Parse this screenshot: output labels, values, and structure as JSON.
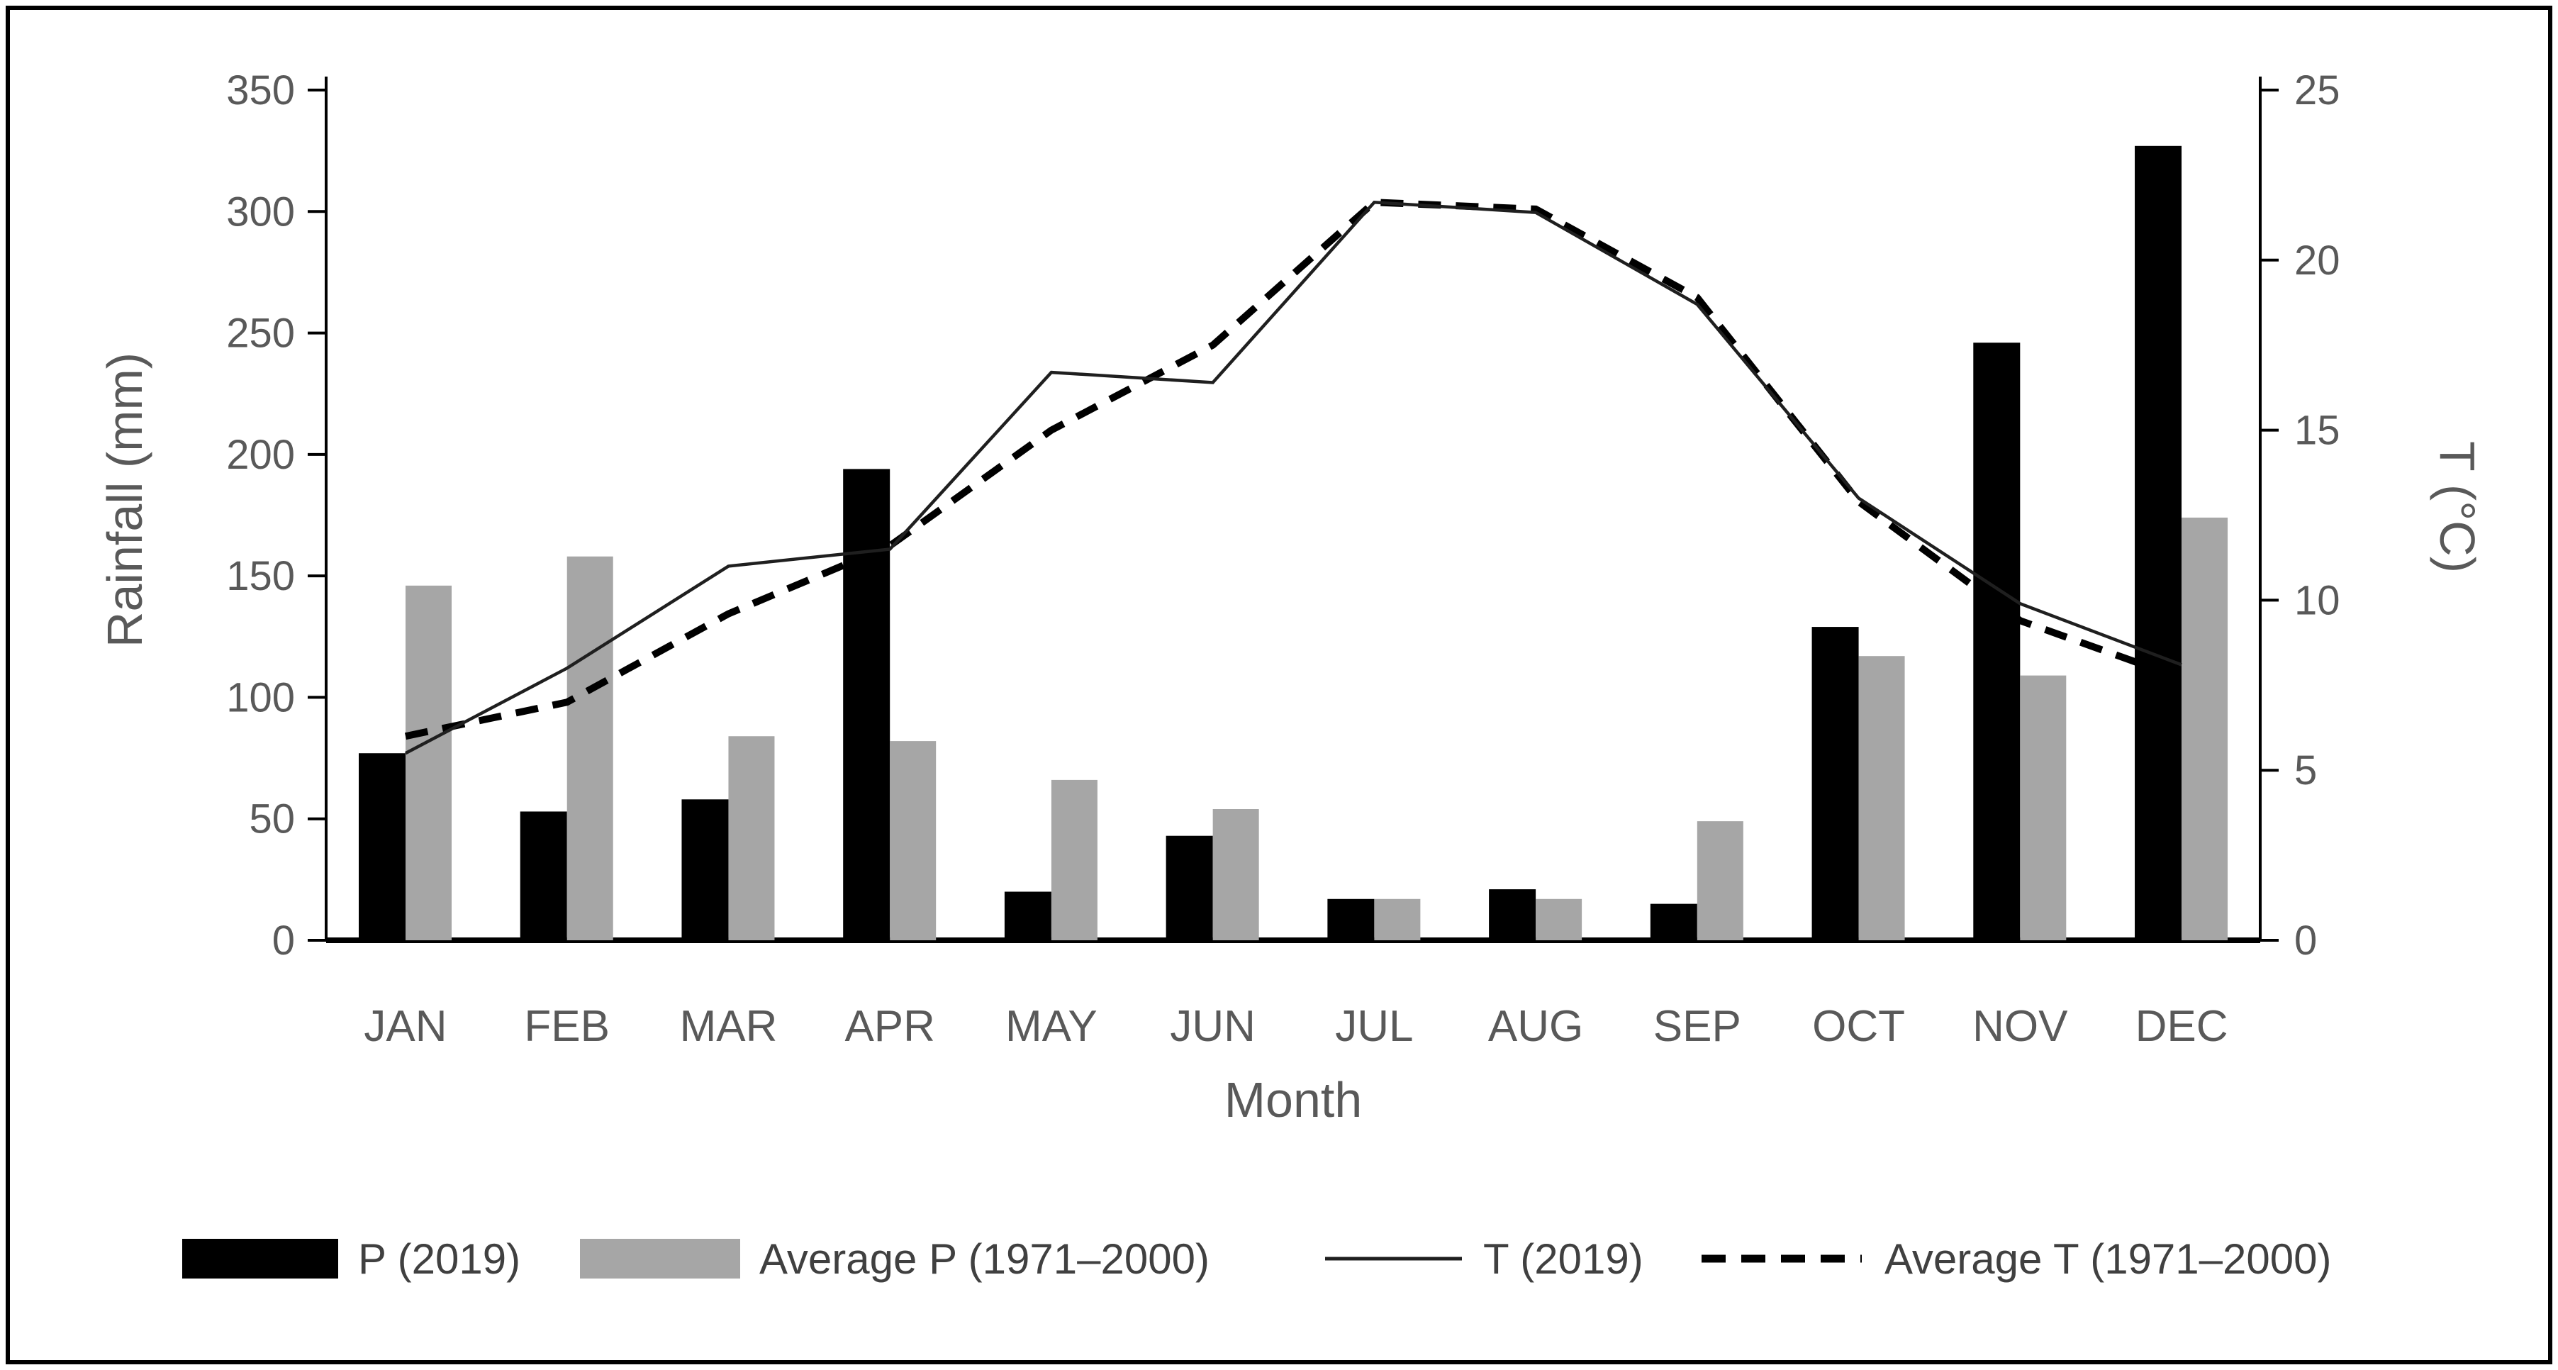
{
  "chart_data": {
    "type": "combo-bar-line",
    "title": "",
    "xlabel": "Month",
    "ylabel_left": "Rainfall (mm)",
    "ylabel_right": "T (°C)",
    "categories": [
      "JAN",
      "FEB",
      "MAR",
      "APR",
      "MAY",
      "JUN",
      "JUL",
      "AUG",
      "SEP",
      "OCT",
      "NOV",
      "DEC"
    ],
    "y_left": {
      "min": 0,
      "max": 350,
      "step": 50,
      "ticks": [
        0,
        50,
        100,
        150,
        200,
        250,
        300,
        350
      ]
    },
    "y_right": {
      "min": 0,
      "max": 25,
      "step": 5,
      "ticks": [
        0,
        5,
        10,
        15,
        20,
        25
      ]
    },
    "grid": false,
    "legend_position": "bottom",
    "background": "#ffffff",
    "text_color": "#595959",
    "series": [
      {
        "name": "P (2019)",
        "type": "bar",
        "axis": "left",
        "color": "#000000",
        "values": [
          77,
          53,
          58,
          194,
          20,
          43,
          17,
          21,
          15,
          129,
          246,
          327
        ]
      },
      {
        "name": "Average P (1971–2000)",
        "type": "bar",
        "axis": "left",
        "color": "#a6a6a6",
        "values": [
          146,
          158,
          84,
          82,
          66,
          54,
          17,
          17,
          49,
          117,
          109,
          174
        ]
      },
      {
        "name": "T (2019)",
        "type": "line",
        "style": "solid",
        "axis": "right",
        "color": "#1f1f1f",
        "values": [
          5.5,
          8.0,
          11.0,
          11.5,
          16.7,
          16.4,
          21.7,
          21.4,
          18.7,
          13.0,
          9.9,
          8.1
        ]
      },
      {
        "name": "Average T (1971–2000)",
        "type": "line",
        "style": "dashed",
        "axis": "right",
        "color": "#000000",
        "values": [
          6.0,
          7.0,
          9.6,
          11.6,
          15.0,
          17.5,
          21.7,
          21.5,
          18.9,
          12.9,
          9.4,
          7.7
        ]
      }
    ]
  }
}
